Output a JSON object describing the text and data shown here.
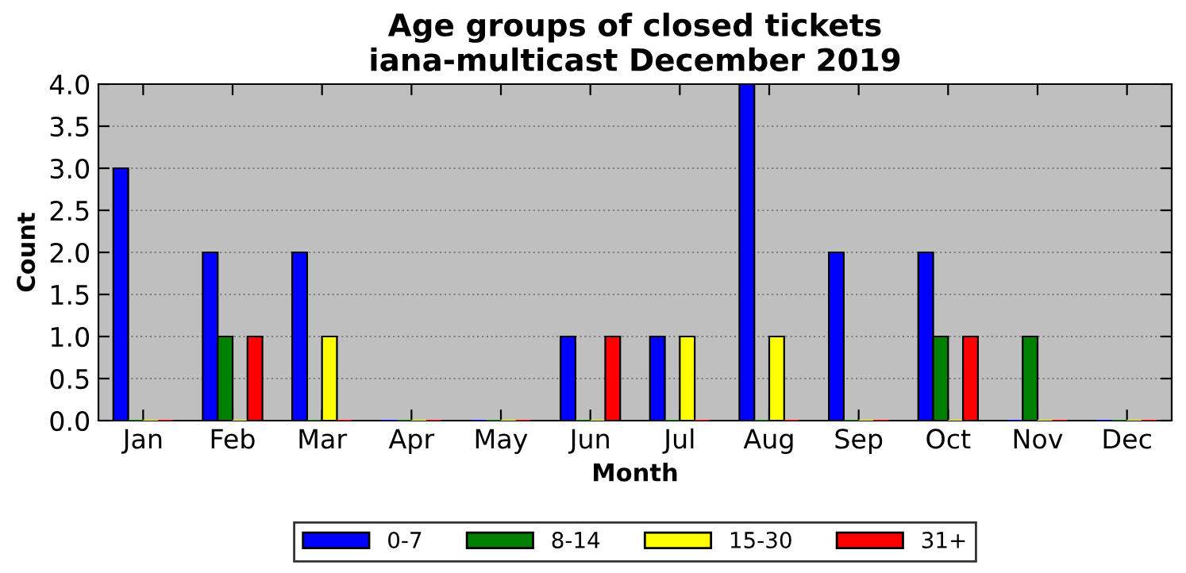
{
  "chart_data": {
    "type": "bar",
    "title": "Age groups of closed tickets\niana-multicast December 2019",
    "xlabel": "Month",
    "ylabel": "Count",
    "categories": [
      "Jan",
      "Feb",
      "Mar",
      "Apr",
      "May",
      "Jun",
      "Jul",
      "Aug",
      "Sep",
      "Oct",
      "Nov",
      "Dec"
    ],
    "series": [
      {
        "name": "0-7",
        "color": "#0000ff",
        "values": [
          3,
          2,
          2,
          0,
          0,
          1,
          1,
          4,
          2,
          2,
          0,
          0
        ]
      },
      {
        "name": "8-14",
        "color": "#008000",
        "values": [
          0,
          1,
          0,
          0,
          0,
          0,
          0,
          0,
          0,
          1,
          1,
          0
        ]
      },
      {
        "name": "15-30",
        "color": "#ffff00",
        "values": [
          0,
          0,
          1,
          0,
          0,
          0,
          1,
          1,
          0,
          0,
          0,
          0
        ]
      },
      {
        "name": "31+",
        "color": "#ff0000",
        "values": [
          0,
          1,
          0,
          0,
          0,
          1,
          0,
          0,
          0,
          1,
          0,
          0
        ]
      }
    ],
    "ylim": [
      0,
      4
    ],
    "yticks": [
      {
        "value": 0,
        "label": "0.0"
      },
      {
        "value": 0.5,
        "label": "0.5"
      },
      {
        "value": 1,
        "label": "1.0"
      },
      {
        "value": 1.5,
        "label": "1.5"
      },
      {
        "value": 2,
        "label": "2.0"
      },
      {
        "value": 2.5,
        "label": "2.5"
      },
      {
        "value": 3,
        "label": "3.0"
      },
      {
        "value": 3.5,
        "label": "3.5"
      },
      {
        "value": 4,
        "label": "4.0"
      }
    ],
    "grid": "y",
    "legend": "bottom"
  }
}
